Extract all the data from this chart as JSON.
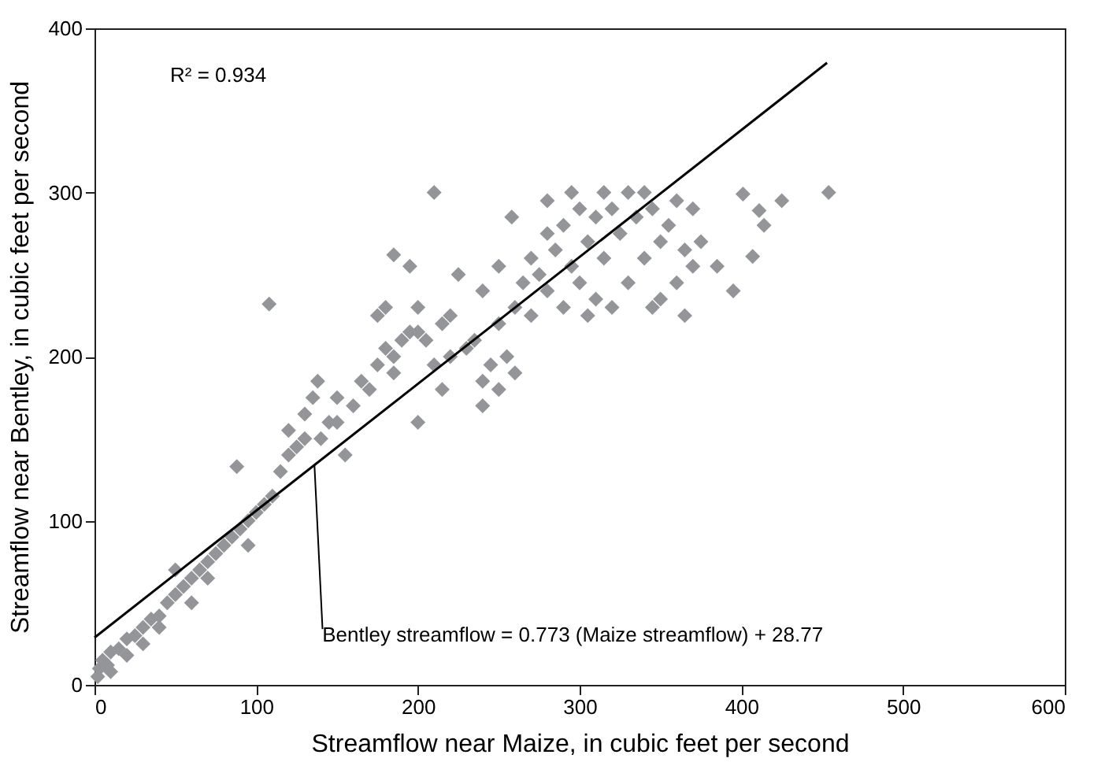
{
  "chart_data": {
    "type": "scatter",
    "xlabel": "Streamflow near Maize, in cubic feet per second",
    "ylabel": "Streamflow near Bentley, in cubic feet per second",
    "xlim": [
      0,
      600
    ],
    "xticks": [
      0,
      100,
      200,
      300,
      400,
      500,
      600
    ],
    "ylim": [
      0,
      400
    ],
    "yticks": [
      0,
      100,
      200,
      300,
      400
    ],
    "grid": false,
    "annotations": [
      "R² = 0.934",
      {
        "text": "Bentley streamflow = 0.773 (Maize streamflow) + 28.77",
        "x": 136,
        "y": 134
      }
    ],
    "series": [
      {
        "type": "scatter",
        "marker": "diamond",
        "color": "#939598",
        "x": [
          2,
          3,
          5,
          8,
          10,
          15,
          20,
          25,
          30,
          35,
          40,
          45,
          50,
          50,
          55,
          60,
          65,
          70,
          75,
          80,
          85,
          90,
          95,
          100,
          88,
          105,
          110,
          95,
          60,
          40,
          30,
          20,
          10,
          70,
          115,
          120,
          120,
          125,
          130,
          130,
          135,
          138,
          140,
          145,
          150,
          150,
          155,
          160,
          108,
          165,
          170,
          175,
          175,
          180,
          180,
          185,
          185,
          190,
          195,
          200,
          200,
          205,
          210,
          210,
          215,
          220,
          220,
          225,
          230,
          235,
          240,
          240,
          245,
          250,
          250,
          255,
          260,
          265,
          270,
          270,
          275,
          280,
          280,
          285,
          290,
          290,
          295,
          295,
          300,
          300,
          305,
          310,
          310,
          315,
          315,
          320,
          320,
          325,
          330,
          330,
          335,
          340,
          340,
          345,
          350,
          350,
          355,
          360,
          360,
          365,
          370,
          370,
          375,
          401,
          411,
          425,
          414,
          407,
          454,
          385,
          395,
          365,
          345,
          305,
          240,
          250,
          260,
          215,
          200,
          195,
          185,
          280,
          258
        ],
        "values": [
          5,
          10,
          15,
          12,
          20,
          22,
          28,
          30,
          35,
          40,
          42,
          50,
          55,
          70,
          60,
          65,
          70,
          75,
          80,
          85,
          90,
          95,
          100,
          105,
          133,
          110,
          115,
          85,
          50,
          35,
          25,
          18,
          8,
          65,
          130,
          140,
          155,
          145,
          150,
          165,
          175,
          185,
          150,
          160,
          160,
          175,
          140,
          170,
          232,
          185,
          180,
          195,
          225,
          205,
          230,
          190,
          200,
          210,
          215,
          215,
          230,
          210,
          300,
          195,
          220,
          225,
          200,
          250,
          205,
          210,
          185,
          240,
          195,
          255,
          220,
          200,
          230,
          245,
          260,
          225,
          250,
          275,
          240,
          265,
          280,
          230,
          300,
          255,
          290,
          245,
          270,
          285,
          235,
          300,
          260,
          290,
          230,
          275,
          300,
          245,
          285,
          260,
          300,
          290,
          270,
          235,
          280,
          295,
          245,
          265,
          290,
          255,
          270,
          299,
          289,
          295,
          280,
          261,
          300,
          255,
          240,
          225,
          230,
          225,
          170,
          180,
          190,
          180,
          160,
          255,
          262,
          295,
          285
        ]
      },
      {
        "type": "line",
        "color": "#000000",
        "x": [
          0,
          453
        ],
        "values": [
          28.8,
          379
        ]
      }
    ]
  }
}
